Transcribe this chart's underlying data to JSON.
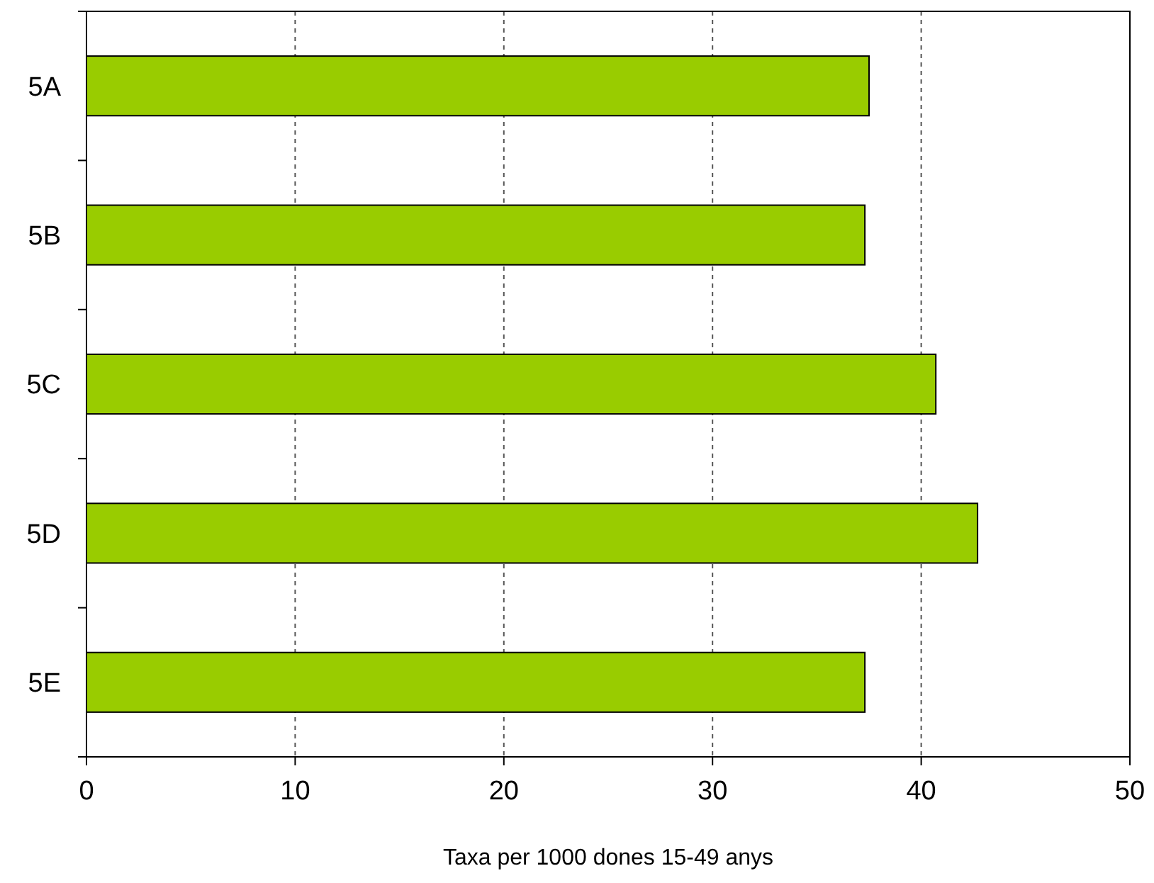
{
  "chart_data": {
    "type": "bar",
    "orientation": "horizontal",
    "categories": [
      "5A",
      "5B",
      "5C",
      "5D",
      "5E"
    ],
    "values": [
      37.5,
      37.3,
      40.7,
      42.7,
      37.3
    ],
    "color": "#99cc00",
    "xlim": [
      0,
      50
    ],
    "xticks": [
      0,
      10,
      20,
      30,
      40,
      50
    ],
    "xlabel": "Taxa per 1000 dones 15-49 anys",
    "grid": "x"
  }
}
